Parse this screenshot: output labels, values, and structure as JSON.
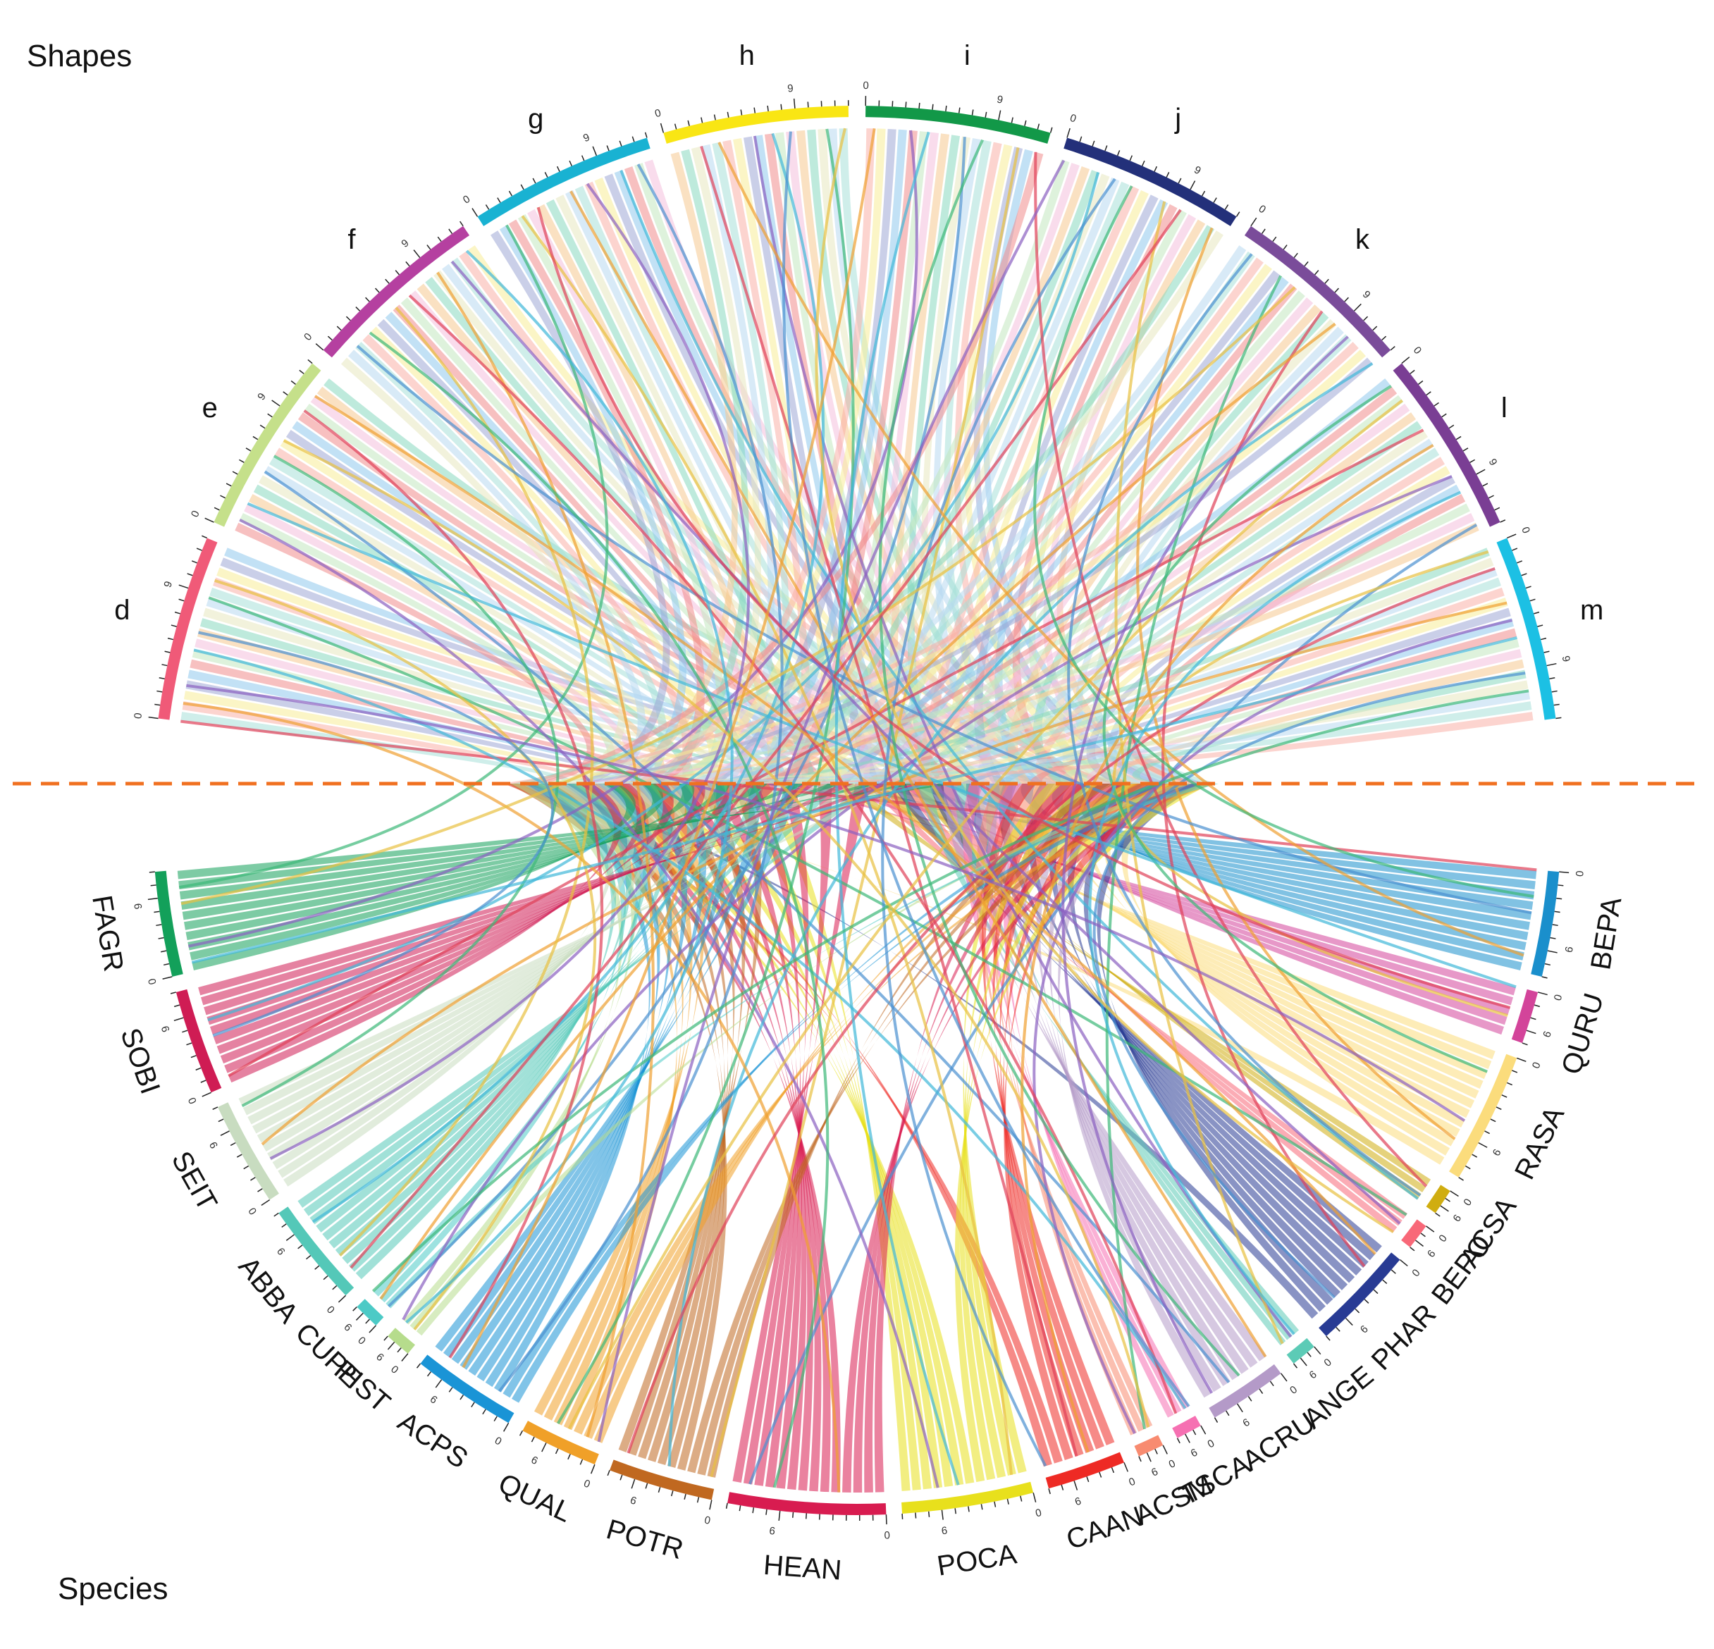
{
  "headings": {
    "shapes": "Shapes",
    "species": "Species"
  },
  "divider": {
    "color": "#f07020",
    "style": "dashed"
  },
  "ticks": {
    "start_label": "0",
    "mid_label": "9"
  },
  "shapes": [
    {
      "label": "d",
      "color": "#f05a78"
    },
    {
      "label": "e",
      "color": "#c5e08a"
    },
    {
      "label": "f",
      "color": "#b540a0"
    },
    {
      "label": "g",
      "color": "#19b2d2"
    },
    {
      "label": "h",
      "color": "#f9e614"
    },
    {
      "label": "i",
      "color": "#129848"
    },
    {
      "label": "j",
      "color": "#23307a"
    },
    {
      "label": "k",
      "color": "#7a4c9a"
    },
    {
      "label": "l",
      "color": "#7a3e94"
    },
    {
      "label": "m",
      "color": "#1cc0e4"
    }
  ],
  "species": [
    {
      "label": "BEPA",
      "color": "#1a8fcc",
      "size": 4
    },
    {
      "label": "QURU",
      "color": "#d3449a",
      "size": 2
    },
    {
      "label": "RASA",
      "color": "#fbdc7c",
      "size": 5
    },
    {
      "label": "ACSA",
      "color": "#d0ad10",
      "size": 1
    },
    {
      "label": "BEPO",
      "color": "#f86878",
      "size": 1
    },
    {
      "label": "PHAR",
      "color": "#283b94",
      "size": 4
    },
    {
      "label": "ANGE",
      "color": "#5ccbb6",
      "size": 1
    },
    {
      "label": "ACRU",
      "color": "#b49ac8",
      "size": 3
    },
    {
      "label": "TSCA",
      "color": "#f670b2",
      "size": 1
    },
    {
      "label": "ACSM",
      "color": "#f88b70",
      "size": 1
    },
    {
      "label": "CAAN",
      "color": "#ee2a24",
      "size": 3
    },
    {
      "label": "POCA",
      "color": "#e8e01c",
      "size": 5
    },
    {
      "label": "HEAN",
      "color": "#d81c50",
      "size": 6
    },
    {
      "label": "POTR",
      "color": "#c06820",
      "size": 4
    },
    {
      "label": "QUAL",
      "color": "#f0a028",
      "size": 3
    },
    {
      "label": "ACPS",
      "color": "#1a94d6",
      "size": 4
    },
    {
      "label": "PIST",
      "color": "#b6dc8c",
      "size": 1
    },
    {
      "label": "CUPE",
      "color": "#4ccac6",
      "size": 1
    },
    {
      "label": "ABBA",
      "color": "#54c8b8",
      "size": 4
    },
    {
      "label": "SEIT",
      "color": "#c8dcc0",
      "size": 4
    },
    {
      "label": "SOBI",
      "color": "#cf1c54",
      "size": 4
    },
    {
      "label": "FAGR",
      "color": "#13a05a",
      "size": 4
    }
  ],
  "ribbon_palette": [
    "#a8e0d8",
    "#f9b0a8",
    "#f8ed98",
    "#9ea8d6",
    "#90c8ec",
    "#f08c8c",
    "#c2e8c0",
    "#f4c0dc",
    "#f6c890",
    "#88d8c0",
    "#e8e8c0",
    "#b8d8f0"
  ],
  "link_palette": [
    "#e04058",
    "#4a90d0",
    "#f0a030",
    "#3cb878",
    "#8a60c0",
    "#e8c040",
    "#40b8d8"
  ]
}
